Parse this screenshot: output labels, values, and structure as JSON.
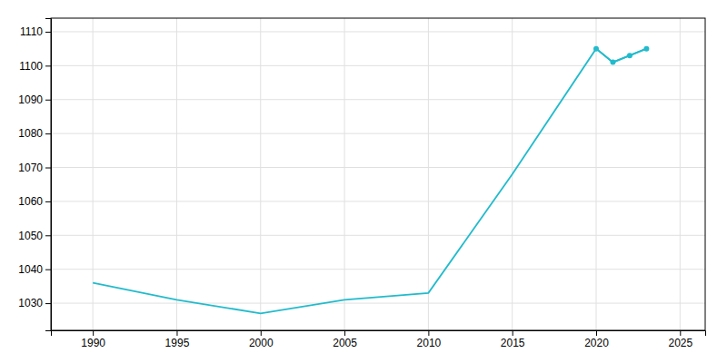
{
  "chart_data": {
    "type": "line",
    "x": [
      1990,
      1995,
      2000,
      2005,
      2010,
      2015,
      2020,
      2021,
      2022,
      2023
    ],
    "series": [
      {
        "color": "#22BBCC",
        "values": [
          1036,
          1031,
          1027,
          1031,
          1033,
          1068,
          1105,
          1101,
          1103,
          1105
        ]
      },
      {
        "color": "#22BBCC",
        "marker": "circle",
        "values": [
          null,
          null,
          null,
          null,
          null,
          null,
          1105,
          1101,
          1103,
          1105
        ]
      }
    ],
    "xlim": [
      1987.5,
      2026.5
    ],
    "xticks": [
      1990,
      1995,
      2000,
      2005,
      2010,
      2015,
      2020,
      2025
    ],
    "ylim": [
      1022,
      1114
    ],
    "yticks": [
      1030,
      1040,
      1050,
      1060,
      1070,
      1080,
      1090,
      1100,
      1110
    ],
    "grid": true
  }
}
